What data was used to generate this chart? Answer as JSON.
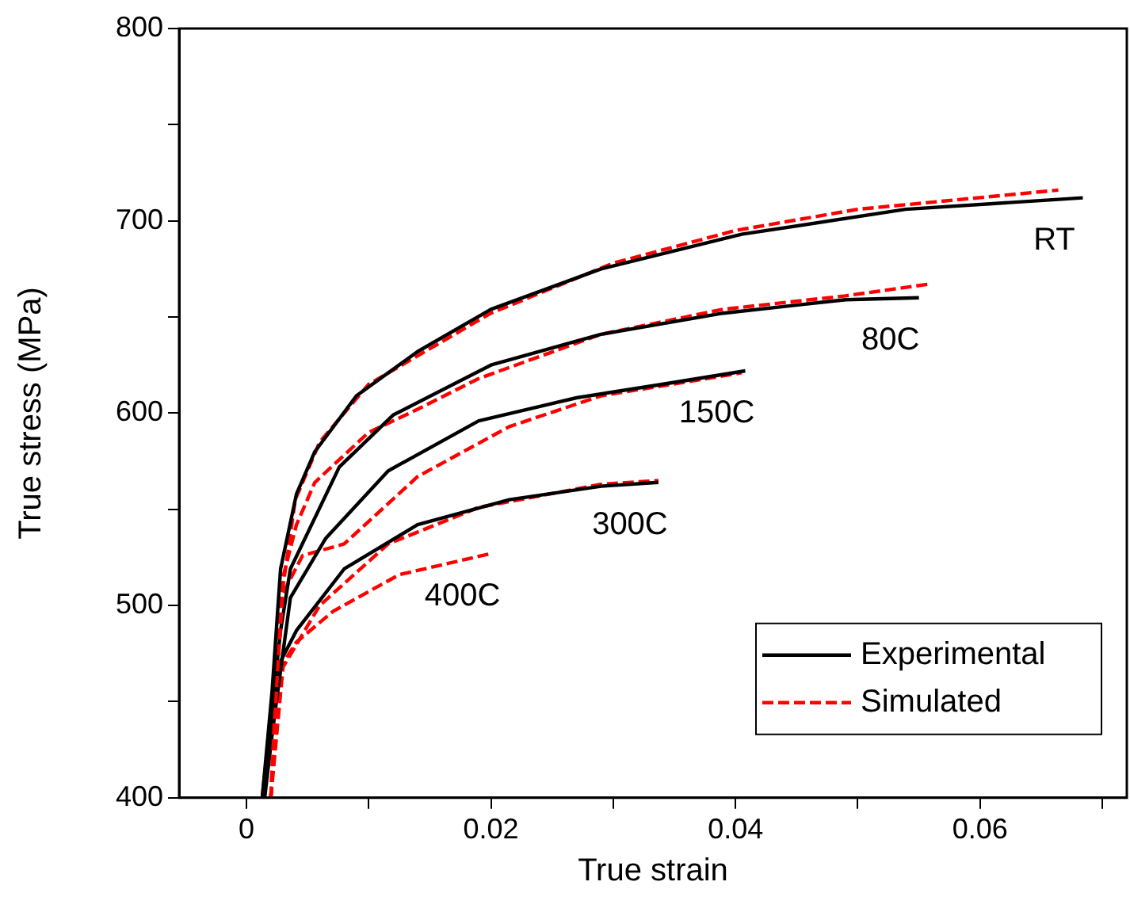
{
  "chart_data": {
    "type": "line",
    "xlabel": "True strain",
    "ylabel": "True stress (MPa)",
    "xlim": [
      -0.0055,
      0.072
    ],
    "ylim": [
      400,
      800
    ],
    "xticks": [
      0,
      {
        "value": 0.01,
        "label": null
      },
      0.02,
      {
        "value": 0.03,
        "label": null
      },
      0.04,
      {
        "value": 0.05,
        "label": null
      },
      0.06,
      {
        "value": 0.07,
        "label": null
      }
    ],
    "yticks": [
      400,
      {
        "value": 450,
        "label": null
      },
      500,
      {
        "value": 550,
        "label": null
      },
      600,
      {
        "value": 650,
        "label": null
      },
      700,
      {
        "value": 750,
        "label": null
      },
      800
    ],
    "grid": false,
    "legend": "bottom right",
    "marker": "none",
    "series": [
      {
        "name": "Experimental",
        "color": "#000000",
        "line_style": "solid",
        "x": [
          0.0013,
          0.0021,
          0.0028,
          0.0041,
          0.0056,
          0.009,
          0.014,
          0.02,
          0.029,
          0.0405,
          0.0539,
          0.0684
        ],
        "values": [
          400,
          455,
          519,
          558,
          580,
          609,
          632,
          654,
          675,
          693,
          706,
          712
        ]
      },
      {
        "name": "Simulated",
        "color": "#ff0000",
        "line_style": "dashed",
        "x": [
          0.002,
          0.0025,
          0.003,
          0.004,
          0.006,
          0.01,
          0.02,
          0.03,
          0.04,
          0.05,
          0.0664
        ],
        "values": [
          400,
          460,
          510,
          555,
          585,
          615,
          652,
          678,
          695,
          706,
          716
        ]
      },
      {
        "color": "#000000",
        "line_style": "solid",
        "x": [
          0.0013,
          0.0028,
          0.0036,
          0.0076,
          0.012,
          0.02,
          0.029,
          0.039,
          0.049,
          0.055
        ],
        "values": [
          400,
          487,
          519,
          572,
          599,
          625,
          641,
          652,
          659,
          660
        ]
      },
      {
        "color": "#ff0000",
        "line_style": "dashed",
        "x": [
          0.002,
          0.0028,
          0.0041,
          0.0056,
          0.01,
          0.014,
          0.019,
          0.029,
          0.039,
          0.049,
          0.0557
        ],
        "values": [
          400,
          510,
          542,
          564,
          590,
          602,
          618,
          641,
          654,
          661,
          667
        ]
      },
      {
        "color": "#000000",
        "line_style": "solid",
        "x": [
          0.0014,
          0.0036,
          0.0065,
          0.0116,
          0.019,
          0.027,
          0.034,
          0.0408
        ],
        "values": [
          400,
          504,
          535,
          570,
          596,
          608,
          615,
          622
        ]
      },
      {
        "color": "#ff0000",
        "line_style": "dashed",
        "x": [
          0.002,
          0.0028,
          0.0046,
          0.008,
          0.014,
          0.0215,
          0.029,
          0.0405
        ],
        "values": [
          400,
          504,
          526,
          532,
          567,
          593,
          609,
          621
        ]
      },
      {
        "color": "#000000",
        "line_style": "solid",
        "x": [
          0.0015,
          0.0028,
          0.0041,
          0.008,
          0.014,
          0.0215,
          0.029,
          0.0337
        ],
        "values": [
          400,
          471,
          487,
          519,
          542,
          555,
          562,
          564
        ]
      },
      {
        "color": "#ff0000",
        "line_style": "dashed",
        "x": [
          0.002,
          0.003,
          0.006,
          0.0116,
          0.019,
          0.029,
          0.0337
        ],
        "values": [
          400,
          468,
          500,
          532,
          551,
          563,
          565
        ]
      },
      {
        "color": "#ff0000",
        "line_style": "dashed",
        "x": [
          0.002,
          0.0028,
          0.0041,
          0.0071,
          0.0125,
          0.02
        ],
        "values": [
          400,
          468,
          481,
          497,
          516,
          527
        ]
      }
    ],
    "annotations": [
      "RT",
      "80C",
      "150C",
      "300C",
      "400C"
    ]
  }
}
